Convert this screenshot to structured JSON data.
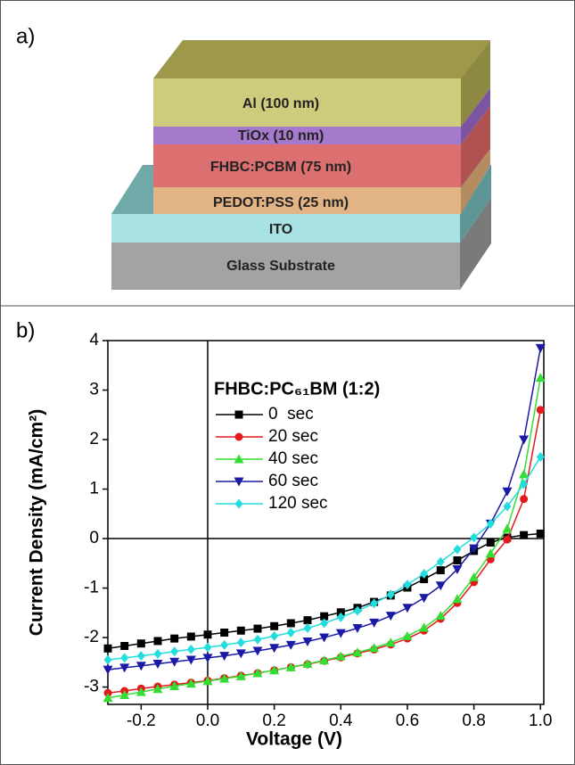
{
  "panel_a": {
    "label": "a)",
    "layers": [
      "Al (100 nm)",
      "TiOx (10 nm)",
      "FHBC:PCBM (75 nm)",
      "PEDOT:PSS (25 nm)",
      "ITO",
      "Glass Substrate"
    ]
  },
  "chart_data": {
    "type": "line",
    "panel_label": "b)",
    "xlabel": "Voltage (V)",
    "ylabel": "Current Density (mA/cm²)",
    "legend_title": "FHBC:PC₆₁BM (1:2)",
    "x": [
      -0.3,
      -0.25,
      -0.2,
      -0.15,
      -0.1,
      -0.05,
      0,
      0.05,
      0.1,
      0.15,
      0.2,
      0.25,
      0.3,
      0.35,
      0.4,
      0.45,
      0.5,
      0.55,
      0.6,
      0.65,
      0.7,
      0.75,
      0.8,
      0.85,
      0.9,
      0.95,
      1.0
    ],
    "series": [
      {
        "name": "0  sec",
        "color": "#000000",
        "marker": "square",
        "values": [
          -2.22,
          -2.17,
          -2.12,
          -2.07,
          -2.02,
          -1.98,
          -1.94,
          -1.9,
          -1.86,
          -1.82,
          -1.77,
          -1.71,
          -1.65,
          -1.57,
          -1.49,
          -1.4,
          -1.28,
          -1.15,
          -0.99,
          -0.82,
          -0.64,
          -0.44,
          -0.25,
          -0.08,
          0.02,
          0.07,
          0.1
        ]
      },
      {
        "name": "20 sec",
        "color": "#e31a1c",
        "marker": "circle",
        "values": [
          -3.12,
          -3.08,
          -3.03,
          -2.99,
          -2.95,
          -2.91,
          -2.87,
          -2.82,
          -2.77,
          -2.72,
          -2.66,
          -2.6,
          -2.54,
          -2.47,
          -2.4,
          -2.32,
          -2.24,
          -2.14,
          -2.02,
          -1.86,
          -1.62,
          -1.3,
          -0.88,
          -0.42,
          -0.02,
          0.8,
          2.6
        ]
      },
      {
        "name": "40 sec",
        "color": "#33dd33",
        "marker": "triangle-up",
        "values": [
          -3.22,
          -3.16,
          -3.1,
          -3.04,
          -2.98,
          -2.93,
          -2.88,
          -2.83,
          -2.78,
          -2.72,
          -2.66,
          -2.6,
          -2.53,
          -2.46,
          -2.38,
          -2.3,
          -2.21,
          -2.1,
          -1.97,
          -1.8,
          -1.56,
          -1.22,
          -0.78,
          -0.3,
          0.2,
          1.3,
          3.25
        ]
      },
      {
        "name": "60 sec",
        "color": "#1a1aa6",
        "marker": "triangle-down",
        "values": [
          -2.65,
          -2.61,
          -2.57,
          -2.53,
          -2.49,
          -2.45,
          -2.41,
          -2.37,
          -2.32,
          -2.27,
          -2.21,
          -2.15,
          -2.08,
          -2.0,
          -1.91,
          -1.81,
          -1.7,
          -1.56,
          -1.4,
          -1.2,
          -0.95,
          -0.62,
          -0.2,
          0.3,
          0.95,
          2.0,
          3.85
        ]
      },
      {
        "name": "120 sec",
        "color": "#22dddd",
        "marker": "diamond",
        "values": [
          -2.45,
          -2.41,
          -2.37,
          -2.33,
          -2.28,
          -2.24,
          -2.2,
          -2.15,
          -2.1,
          -2.04,
          -1.97,
          -1.9,
          -1.81,
          -1.71,
          -1.59,
          -1.46,
          -1.31,
          -1.13,
          -0.93,
          -0.71,
          -0.47,
          -0.22,
          0.02,
          0.3,
          0.65,
          1.1,
          1.65
        ]
      }
    ],
    "xlim": [
      -0.3,
      1.01
    ],
    "ylim": [
      -3.35,
      4
    ],
    "xticks": [
      -0.2,
      {
        "value": 0,
        "label": "0.0"
      },
      0.2,
      0.4,
      0.6,
      0.8,
      {
        "value": 1,
        "label": "1.0"
      }
    ],
    "yticks": [
      -3,
      -2,
      -1,
      0,
      1,
      2,
      3,
      4
    ]
  }
}
